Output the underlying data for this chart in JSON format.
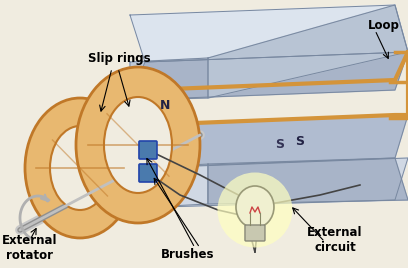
{
  "bg_color": "#f0ece0",
  "magnet_top_face": "#cdd5e0",
  "magnet_side_face": "#b8c2d0",
  "magnet_front_face": "#a8b4c4",
  "magnet_inner_face": "#d8dfe8",
  "magnet_edge": "#7888a0",
  "loop_color": "#d4943a",
  "loop_edge": "#b07020",
  "slip_ring_fill": "#e8b870",
  "slip_ring_edge": "#c07828",
  "brush_color": "#4a7aad",
  "shaft_color": "#b0b0b0",
  "shaft_dark": "#888888",
  "wire_color": "#888888",
  "bulb_glow": "#ffffa0",
  "bulb_body": "#f0f0c8",
  "bulb_base": "#c8c8b8",
  "labels": {
    "loop": "Loop",
    "slip_rings": "Slip rings",
    "N": "N",
    "S": "S",
    "external_rotator": "External\nrotator",
    "brushes": "Brushes",
    "external_circuit": "External\ncircuit"
  }
}
